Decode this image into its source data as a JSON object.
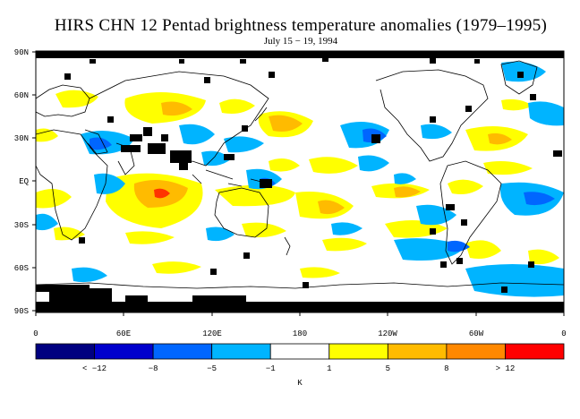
{
  "title": "HIRS CHN 12 Pentad brightness temperature anomalies (1979–1995)",
  "subtitle": "July 15 − 19, 1994",
  "lat_labels": [
    "90N",
    "60N",
    "30N",
    "EQ",
    "30S",
    "60S",
    "90S"
  ],
  "lon_labels": [
    "0",
    "60E",
    "120E",
    "180",
    "120W",
    "60W",
    "0"
  ],
  "colorbar": {
    "colors": [
      "#000080",
      "#0000cd",
      "#0066ff",
      "#00b4ff",
      "#ffffff",
      "#ffff00",
      "#ffbb00",
      "#ff8800",
      "#ff0000"
    ],
    "labels": [
      "< −12",
      "−8",
      "−5",
      "−1",
      "1",
      "5",
      "8",
      "> 12"
    ],
    "unit": "K"
  },
  "map": {
    "lon_range": [
      0,
      360
    ],
    "lat_range": [
      -90,
      90
    ],
    "missing_color": "#000000"
  }
}
